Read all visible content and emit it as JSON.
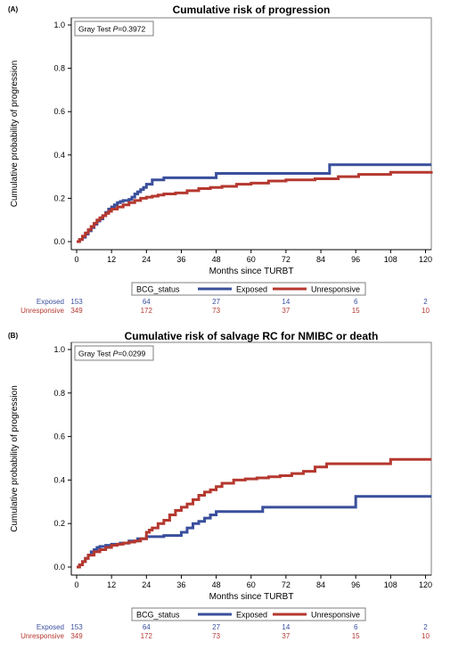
{
  "colors": {
    "exposed": "#3a4f9c",
    "unresponsive": "#b5382f"
  },
  "chart_data": [
    {
      "type": "line",
      "step": true,
      "panel_label": "(A)",
      "title": "Cumulative risk of progression",
      "xlabel": "Months since TURBT",
      "ylabel": "Cumulative probability of progression",
      "xlim": [
        0,
        122
      ],
      "ylim": [
        0,
        1.0
      ],
      "xticks": [
        0,
        12,
        24,
        36,
        48,
        60,
        72,
        84,
        96,
        108,
        120
      ],
      "yticks": [
        "0.0",
        "0.2",
        "0.4",
        "0.6",
        "0.8",
        "1.0"
      ],
      "grid": false,
      "stat_prefix": "Gray Test ",
      "stat_p": "P",
      "stat_value": "=0.3972",
      "legend": {
        "title": "BCG_status",
        "placement": "bottom",
        "entries": [
          "Exposed",
          "Unresponsive"
        ]
      },
      "series": [
        {
          "name": "Exposed",
          "color_key": "exposed",
          "x": [
            0,
            1,
            2,
            3,
            4,
            5,
            6,
            7,
            8,
            9,
            10,
            11,
            12,
            13,
            14,
            15,
            16,
            17,
            18,
            19,
            20,
            21,
            22,
            23,
            24,
            26,
            30,
            48,
            87,
            122
          ],
          "y": [
            0,
            0.01,
            0.02,
            0.035,
            0.05,
            0.065,
            0.08,
            0.095,
            0.105,
            0.12,
            0.135,
            0.15,
            0.16,
            0.17,
            0.18,
            0.185,
            0.19,
            0.19,
            0.195,
            0.205,
            0.22,
            0.23,
            0.24,
            0.25,
            0.265,
            0.285,
            0.295,
            0.315,
            0.355,
            0.355
          ]
        },
        {
          "name": "Unresponsive",
          "color_key": "unresponsive",
          "x": [
            0,
            1,
            2,
            3,
            4,
            5,
            6,
            7,
            8,
            9,
            10,
            11,
            12,
            14,
            16,
            18,
            20,
            22,
            24,
            26,
            28,
            30,
            34,
            38,
            42,
            46,
            50,
            55,
            60,
            66,
            72,
            82,
            90,
            97,
            108,
            122
          ],
          "y": [
            0,
            0.01,
            0.025,
            0.04,
            0.055,
            0.07,
            0.085,
            0.1,
            0.11,
            0.12,
            0.13,
            0.14,
            0.15,
            0.16,
            0.17,
            0.18,
            0.19,
            0.2,
            0.205,
            0.21,
            0.215,
            0.22,
            0.225,
            0.235,
            0.245,
            0.25,
            0.255,
            0.265,
            0.27,
            0.28,
            0.285,
            0.29,
            0.3,
            0.31,
            0.32,
            0.325
          ]
        }
      ],
      "risk_table": {
        "rows": [
          {
            "label": "Exposed",
            "color_key": "exposed",
            "values": [
              "153",
              "64",
              "27",
              "14",
              "6",
              "2"
            ]
          },
          {
            "label": "Unresponsive",
            "color_key": "unresponsive",
            "values": [
              "349",
              "172",
              "73",
              "37",
              "15",
              "10"
            ]
          }
        ],
        "at_x": [
          0,
          24,
          48,
          72,
          96,
          120
        ]
      }
    },
    {
      "type": "line",
      "step": true,
      "panel_label": "(B)",
      "title": "Cumulative risk of salvage RC for NMIBC or death",
      "xlabel": "Months since TURBT",
      "ylabel": "Cumulative probability of progression",
      "xlim": [
        0,
        122
      ],
      "ylim": [
        0,
        1.0
      ],
      "xticks": [
        0,
        12,
        24,
        36,
        48,
        60,
        72,
        84,
        96,
        108,
        120
      ],
      "yticks": [
        "0.0",
        "0.2",
        "0.4",
        "0.6",
        "0.8",
        "1.0"
      ],
      "grid": false,
      "stat_prefix": "Gray Test ",
      "stat_p": "P",
      "stat_value": "=0.0299",
      "legend": {
        "title": "BCG_status",
        "placement": "bottom",
        "entries": [
          "Exposed",
          "Unresponsive"
        ]
      },
      "series": [
        {
          "name": "Exposed",
          "color_key": "exposed",
          "x": [
            0,
            1,
            2,
            3,
            4,
            5,
            6,
            7,
            8,
            10,
            12,
            15,
            18,
            21,
            24,
            30,
            36,
            38,
            40,
            42,
            44,
            46,
            48,
            64,
            96,
            122
          ],
          "y": [
            0,
            0.01,
            0.025,
            0.04,
            0.055,
            0.07,
            0.08,
            0.09,
            0.095,
            0.1,
            0.105,
            0.11,
            0.12,
            0.13,
            0.14,
            0.145,
            0.16,
            0.18,
            0.2,
            0.21,
            0.225,
            0.24,
            0.255,
            0.275,
            0.325,
            0.325
          ]
        },
        {
          "name": "Unresponsive",
          "color_key": "unresponsive",
          "x": [
            0,
            1,
            2,
            3,
            4,
            6,
            8,
            10,
            12,
            14,
            16,
            18,
            20,
            22,
            24,
            25,
            26,
            28,
            30,
            32,
            34,
            36,
            38,
            40,
            42,
            44,
            46,
            48,
            50,
            54,
            58,
            62,
            66,
            70,
            74,
            78,
            82,
            86,
            108,
            122
          ],
          "y": [
            0,
            0.01,
            0.025,
            0.04,
            0.055,
            0.07,
            0.08,
            0.09,
            0.1,
            0.105,
            0.11,
            0.115,
            0.12,
            0.13,
            0.16,
            0.17,
            0.18,
            0.2,
            0.215,
            0.24,
            0.26,
            0.275,
            0.29,
            0.31,
            0.33,
            0.345,
            0.355,
            0.37,
            0.385,
            0.4,
            0.405,
            0.41,
            0.415,
            0.42,
            0.43,
            0.44,
            0.46,
            0.475,
            0.495,
            0.495
          ]
        }
      ],
      "risk_table": {
        "rows": [
          {
            "label": "Exposed",
            "color_key": "exposed",
            "values": [
              "153",
              "64",
              "27",
              "14",
              "6",
              "2"
            ]
          },
          {
            "label": "Unresponsive",
            "color_key": "unresponsive",
            "values": [
              "349",
              "172",
              "73",
              "37",
              "15",
              "10"
            ]
          }
        ],
        "at_x": [
          0,
          24,
          48,
          72,
          96,
          120
        ]
      }
    }
  ]
}
